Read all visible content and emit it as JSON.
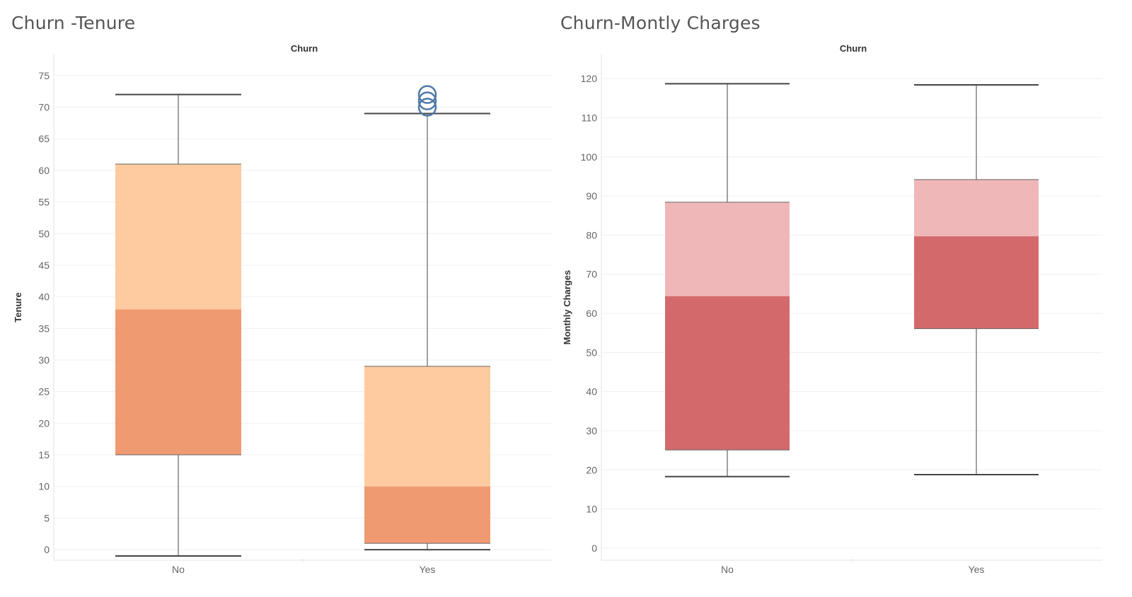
{
  "chart_data": [
    {
      "type": "boxplot",
      "title": "Churn -Tenure",
      "xlabel": "Churn",
      "ylabel": "Tenure",
      "ylim": [
        -1,
        77
      ],
      "yticks": [
        0,
        5,
        10,
        15,
        20,
        25,
        30,
        35,
        40,
        45,
        50,
        55,
        60,
        65,
        70,
        75
      ],
      "grid": true,
      "colors": {
        "upper": "#fdcb9f",
        "lower": "#f09a72",
        "whisker": "#444444",
        "outlier": "#4e79a7"
      },
      "categories": [
        "No",
        "Yes"
      ],
      "boxes": [
        {
          "category": "No",
          "whisker_low": -1,
          "q1": 15,
          "median": 38,
          "q3": 61,
          "whisker_high": 72,
          "outliers": []
        },
        {
          "category": "Yes",
          "whisker_low": 0,
          "q1": 1,
          "median": 10,
          "q3": 29,
          "whisker_high": 69,
          "outliers": [
            70,
            71,
            72
          ]
        }
      ]
    },
    {
      "type": "boxplot",
      "title": "Churn-Montly Charges",
      "xlabel": "Churn",
      "ylabel": "Monthly Charges",
      "ylim": [
        -2,
        124
      ],
      "yticks": [
        0,
        10,
        20,
        30,
        40,
        50,
        60,
        70,
        80,
        90,
        100,
        110,
        120
      ],
      "grid": true,
      "colors": {
        "upper": "#f0b7b9",
        "lower": "#d4696b",
        "whisker": "#444444",
        "outlier": "#4e79a7"
      },
      "categories": [
        "No",
        "Yes"
      ],
      "boxes": [
        {
          "category": "No",
          "whisker_low": 18.3,
          "q1": 25.1,
          "median": 64.4,
          "q3": 88.4,
          "whisker_high": 118.7,
          "outliers": []
        },
        {
          "category": "Yes",
          "whisker_low": 18.8,
          "q1": 56.1,
          "median": 79.7,
          "q3": 94.2,
          "whisker_high": 118.4,
          "outliers": []
        }
      ]
    }
  ]
}
